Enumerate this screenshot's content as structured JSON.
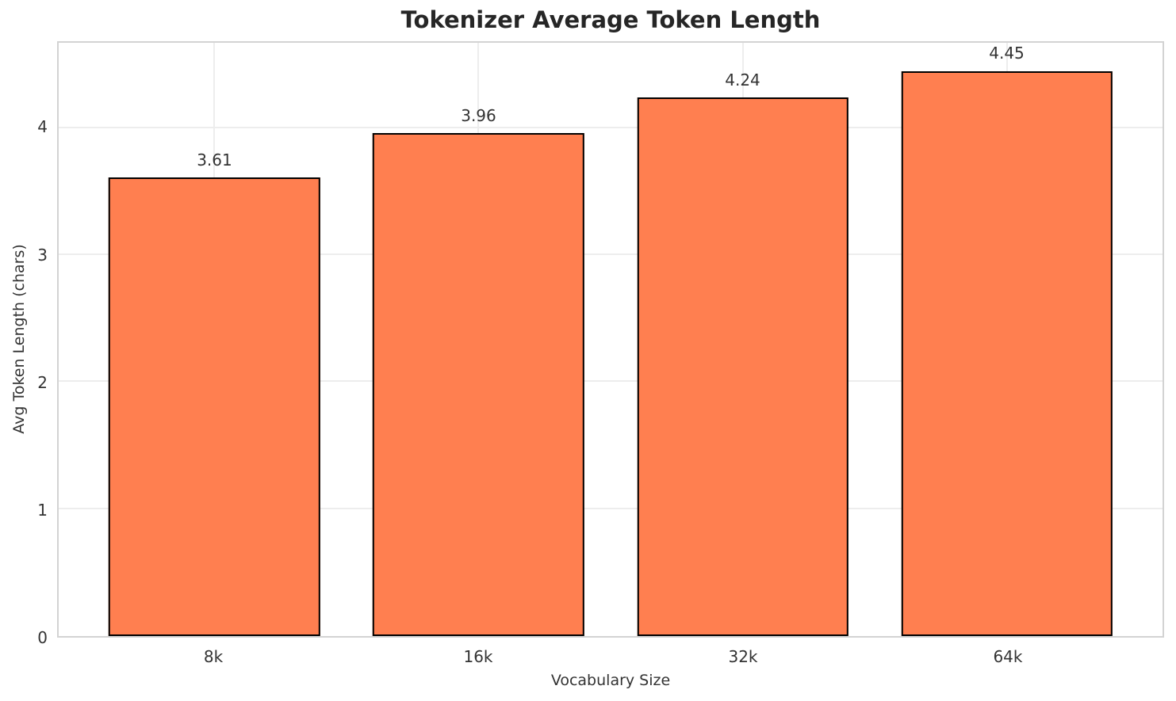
{
  "chart_data": {
    "type": "bar",
    "title": "Tokenizer Average Token Length",
    "categories": [
      "8k",
      "16k",
      "32k",
      "64k"
    ],
    "values": [
      3.61,
      3.96,
      4.24,
      4.45
    ],
    "bar_labels": [
      "3.61",
      "3.96",
      "4.24",
      "4.45"
    ],
    "xlabel": "Vocabulary Size",
    "ylabel": "Avg Token Length (chars)",
    "ylim": [
      0,
      4.6725
    ],
    "yticks": [
      0,
      1,
      2,
      3,
      4
    ],
    "xlim": [
      -0.59,
      3.59
    ],
    "bar_width": 0.8,
    "grid": true,
    "legend_position": "none",
    "colors": {
      "bar_fill": "#FF7F50",
      "bar_edge": "#000000",
      "grid_line": "#ededed",
      "spine": "#d3d3d3",
      "title_text": "#262626",
      "label_text": "#333333",
      "background": "#ffffff"
    }
  }
}
